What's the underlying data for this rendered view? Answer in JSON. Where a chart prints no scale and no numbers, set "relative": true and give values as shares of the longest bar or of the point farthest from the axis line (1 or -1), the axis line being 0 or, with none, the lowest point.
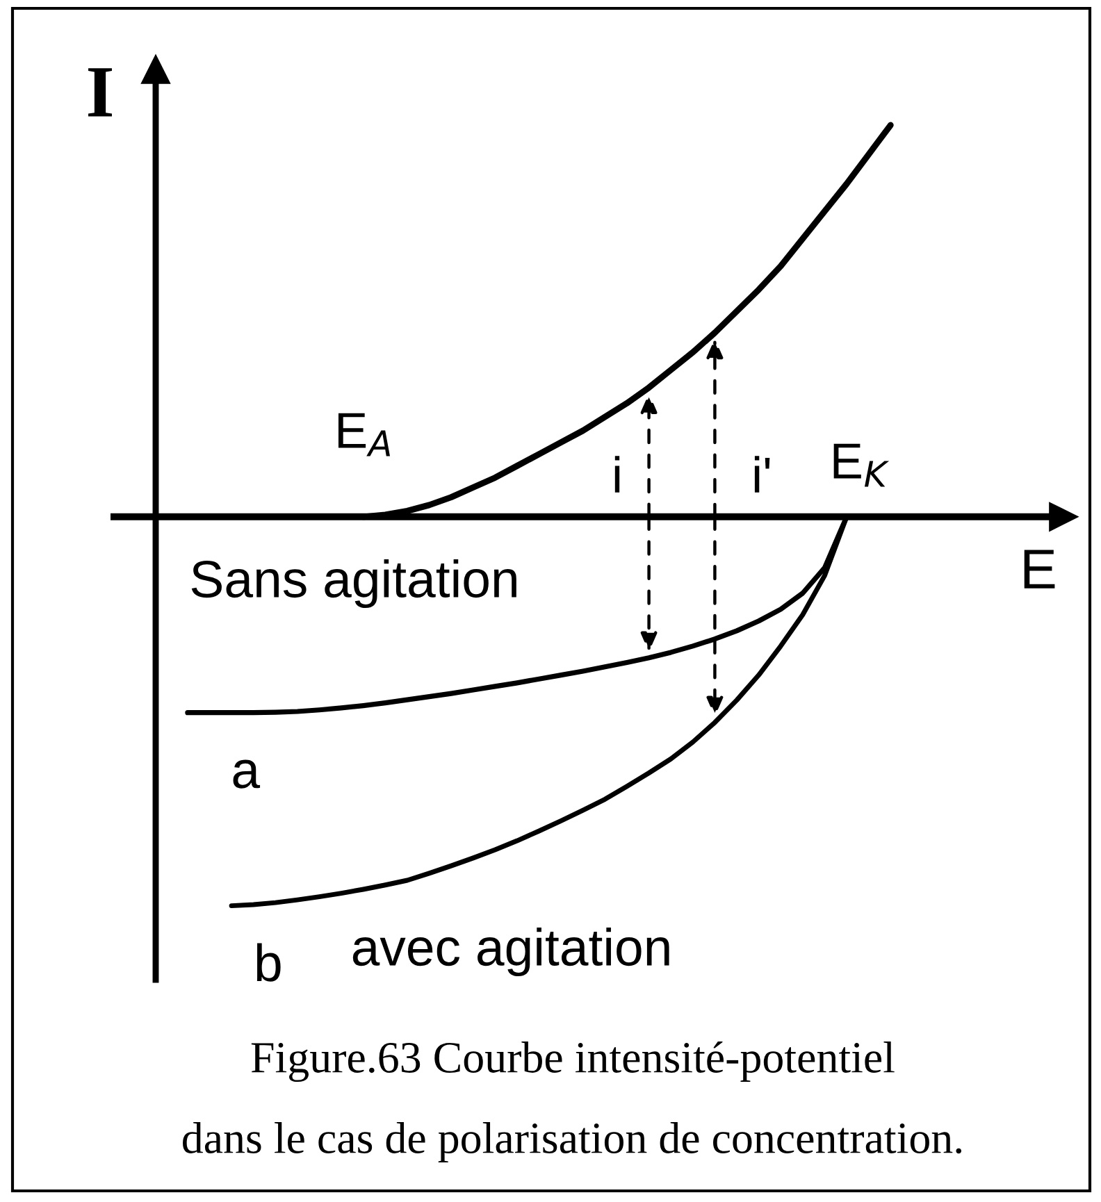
{
  "chart_data": {
    "type": "line",
    "relative": true,
    "xlabel": "E",
    "ylabel": "I",
    "line_style": "solid",
    "categories": [
      null,
      null,
      null,
      null,
      null,
      null,
      null,
      null,
      null,
      null,
      null,
      null,
      null,
      null,
      null,
      null,
      null,
      null,
      null,
      null,
      null,
      null,
      null,
      null,
      null,
      null,
      null,
      null,
      null,
      null,
      null,
      null,
      null
    ],
    "series": [
      {
        "color": "#000000",
        "values": [
          null,
          null,
          null,
          null,
          null,
          null,
          null,
          null,
          0,
          0.005,
          0.015,
          0.03,
          0.05,
          0.075,
          0.1,
          0.13,
          0.16,
          0.19,
          0.22,
          0.255,
          0.29,
          0.33,
          0.375,
          0.42,
          0.47,
          0.525,
          0.58,
          0.64,
          0.71,
          0.78,
          0.85,
          0.925,
          1
        ]
      },
      {
        "name": "a",
        "color": "#000000",
        "values": [
          -0.5,
          -0.5,
          -0.5,
          -0.5,
          -0.499,
          -0.497,
          -0.493,
          -0.488,
          -0.482,
          -0.475,
          -0.467,
          -0.459,
          -0.451,
          -0.442,
          -0.433,
          -0.424,
          -0.414,
          -0.404,
          -0.394,
          -0.383,
          -0.372,
          -0.36,
          -0.346,
          -0.33,
          -0.312,
          -0.291,
          -0.266,
          -0.236,
          -0.195,
          -0.13,
          0,
          null,
          null
        ]
      },
      {
        "name": "b",
        "color": "#000000",
        "values": [
          null,
          null,
          -0.993,
          -0.99,
          -0.985,
          -0.978,
          -0.97,
          -0.961,
          -0.951,
          -0.94,
          -0.928,
          -0.91,
          -0.891,
          -0.871,
          -0.85,
          -0.827,
          -0.802,
          -0.776,
          -0.749,
          -0.721,
          -0.688,
          -0.654,
          -0.618,
          -0.575,
          -0.525,
          -0.468,
          -0.404,
          -0.33,
          -0.25,
          -0.15,
          0,
          null,
          null
        ]
      }
    ],
    "annotations": [
      "E$_{A}$",
      "i",
      "i'",
      "E$_{K}$",
      "Sans agitation",
      "avec agitation",
      "Figure.63 Courbe intensité-potentiel",
      "dans le cas de polarisation de concentration."
    ]
  }
}
